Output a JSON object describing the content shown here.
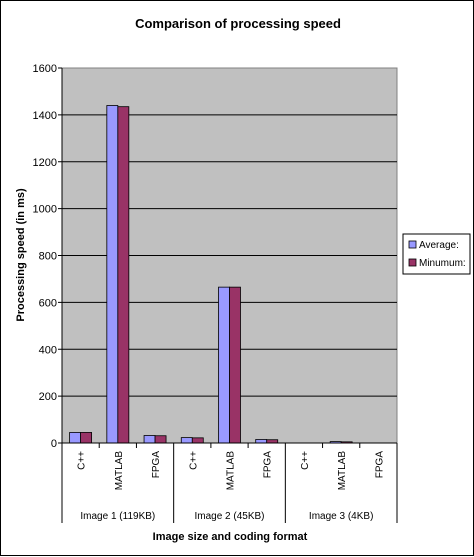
{
  "chart_data": {
    "type": "bar",
    "title": "Comparison of processing speed",
    "xlabel": "Image size and coding format",
    "ylabel": "Processing speed (in ms)",
    "ylim": [
      0,
      1600
    ],
    "yticks": [
      "0",
      "200",
      "400",
      "600",
      "800",
      "1000",
      "1200",
      "1400",
      "1600"
    ],
    "grid": true,
    "legend_position": "right",
    "groups": [
      {
        "label": "Image 1 (119KB)",
        "categories": [
          "C++",
          "MATLAB",
          "FPGA"
        ]
      },
      {
        "label": "Image 2 (45KB)",
        "categories": [
          "C++",
          "MATLAB",
          "FPGA"
        ]
      },
      {
        "label": "Image 3 (4KB)",
        "categories": [
          "C++",
          "MATLAB",
          "FPGA"
        ]
      }
    ],
    "categories": [
      "C++",
      "MATLAB",
      "FPGA",
      "C++",
      "MATLAB",
      "FPGA",
      "C++",
      "MATLAB",
      "FPGA"
    ],
    "series": [
      {
        "name": "Average:",
        "color": "#9999ff",
        "values": [
          45,
          1440,
          32,
          23,
          665,
          15,
          0,
          6,
          0
        ]
      },
      {
        "name": "Minumum:",
        "color": "#993366",
        "values": [
          45,
          1435,
          31,
          22,
          665,
          14,
          0,
          5,
          0
        ]
      }
    ],
    "plot_background": "#c0c0c0"
  }
}
